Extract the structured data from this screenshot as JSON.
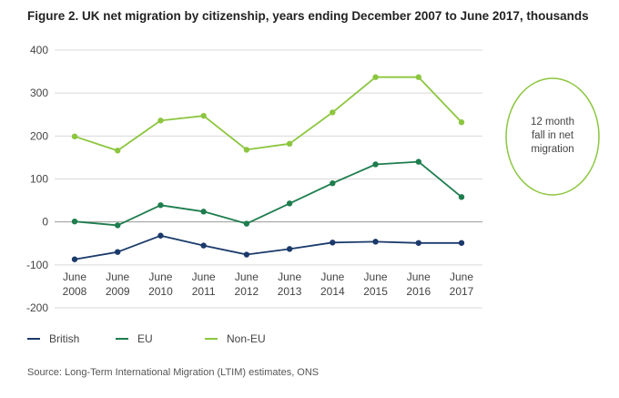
{
  "title": "Figure 2. UK net migration by citizenship, years ending December 2007 to June 2017, thousands",
  "source": "Source: Long-Term International Migration (LTIM) estimates, ONS",
  "chart_data": {
    "type": "line",
    "title": "Figure 2. UK net migration by citizenship, years ending December 2007 to June 2017, thousands",
    "xlabel": "",
    "ylabel": "",
    "ylim": [
      -200,
      400
    ],
    "yticks": [
      400,
      300,
      200,
      100,
      0,
      -100,
      -200
    ],
    "grid": true,
    "categories": [
      [
        "June",
        "2008"
      ],
      [
        "June",
        "2009"
      ],
      [
        "June",
        "2010"
      ],
      [
        "June",
        "2011"
      ],
      [
        "June",
        "2012"
      ],
      [
        "June",
        "2013"
      ],
      [
        "June",
        "2014"
      ],
      [
        "June",
        "2015"
      ],
      [
        "June",
        "2016"
      ],
      [
        "June",
        "2017"
      ]
    ],
    "series": [
      {
        "name": "British",
        "color": "#1b3a6b",
        "values": [
          -87,
          -70,
          -32,
          -55,
          -76,
          -63,
          -48,
          -46,
          -49,
          -49
        ]
      },
      {
        "name": "EU",
        "color": "#1e7d4e",
        "values": [
          1,
          -8,
          39,
          24,
          -4,
          43,
          90,
          134,
          140,
          58
        ]
      },
      {
        "name": "Non-EU",
        "color": "#8cc63f",
        "values": [
          199,
          166,
          236,
          247,
          168,
          182,
          255,
          337,
          337,
          232
        ]
      }
    ],
    "annotation": "12 month fall in net migration",
    "annotation_lines": [
      "12 month",
      "fall in net",
      "migration"
    ],
    "annotation_color": "#8cc63f"
  }
}
